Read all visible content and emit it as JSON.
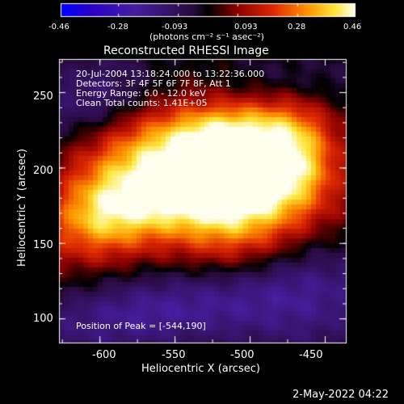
{
  "colorbar": {
    "ticks": [
      "-0.46",
      "-0.28",
      "-0.093",
      "0.093",
      "0.28",
      "0.46"
    ],
    "tick_values": [
      -0.46,
      -0.28,
      -0.093,
      0.093,
      0.28,
      0.46
    ],
    "units": "(photons cm⁻² s⁻¹ asec⁻²)",
    "range": [
      -0.46,
      0.46
    ]
  },
  "title": "Reconstructed RHESSI Image",
  "info": {
    "time": "20-Jul-2004 13:18:24.000 to 13:22:36.000",
    "detectors": "Detectors: 3F 4F 5F 6F 7F 8F, Att 1",
    "energy": "Energy Range: 6.0 - 12.0 keV",
    "clean": "Clean     Total counts: 1.41E+05"
  },
  "peak": "Position of Peak = [-544,190]",
  "axes": {
    "xlabel": "Heliocentric X (arcsec)",
    "ylabel": "Heliocentric Y (arcsec)",
    "xticks": [
      "-600",
      "-550",
      "-500",
      "-450"
    ],
    "xtick_values": [
      -600,
      -550,
      -500,
      -450
    ],
    "yticks": [
      "250",
      "200",
      "150",
      "100"
    ],
    "ytick_values": [
      250,
      200,
      150,
      100
    ],
    "xlim": [
      -627,
      -436
    ],
    "ylim": [
      84,
      272
    ]
  },
  "footer": {
    "date": "2-May-2022 04:22"
  },
  "colors": {
    "background": "#000000",
    "text": "#ffffff"
  }
}
